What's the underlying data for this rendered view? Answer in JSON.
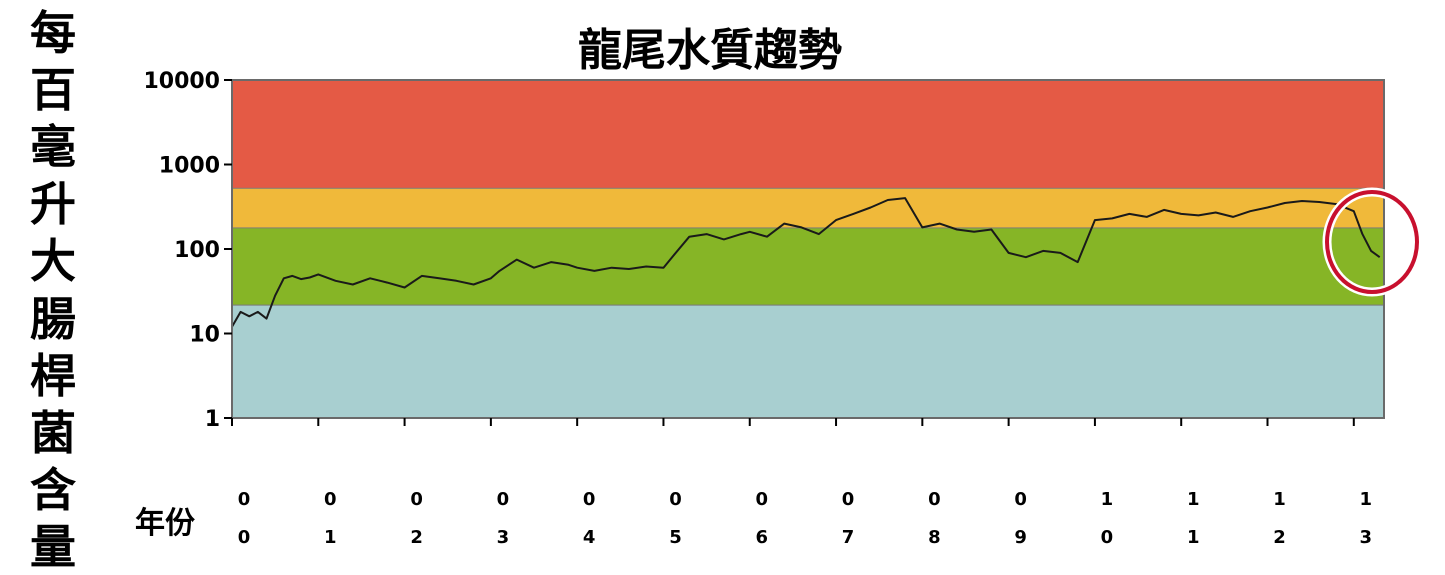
{
  "chart_data": {
    "type": "line",
    "title": "龍尾水質趨勢",
    "ylabel": "每百毫升大腸桿菌含量",
    "xlabel": "年份",
    "yscale": "log",
    "ylim": [
      1,
      10000
    ],
    "yticks": [
      "1",
      "10",
      "100",
      "1000",
      "10000"
    ],
    "xlim": [
      2000.0,
      2013.35
    ],
    "xticks": [
      {
        "value": 2000,
        "top": "0",
        "bottom": "0"
      },
      {
        "value": 2001,
        "top": "0",
        "bottom": "1"
      },
      {
        "value": 2002,
        "top": "0",
        "bottom": "2"
      },
      {
        "value": 2003,
        "top": "0",
        "bottom": "3"
      },
      {
        "value": 2004,
        "top": "0",
        "bottom": "4"
      },
      {
        "value": 2005,
        "top": "0",
        "bottom": "5"
      },
      {
        "value": 2006,
        "top": "0",
        "bottom": "6"
      },
      {
        "value": 2007,
        "top": "0",
        "bottom": "7"
      },
      {
        "value": 2008,
        "top": "0",
        "bottom": "8"
      },
      {
        "value": 2009,
        "top": "0",
        "bottom": "9"
      },
      {
        "value": 2010,
        "top": "1",
        "bottom": "0"
      },
      {
        "value": 2011,
        "top": "1",
        "bottom": "1"
      },
      {
        "value": 2012,
        "top": "1",
        "bottom": "2"
      },
      {
        "value": 2013,
        "top": "1",
        "bottom": "3"
      }
    ],
    "bands": [
      {
        "from": 1,
        "to": 22,
        "color": "#a8cfd0"
      },
      {
        "from": 22,
        "to": 180,
        "color": "#86b526"
      },
      {
        "from": 180,
        "to": 530,
        "color": "#f0b93a"
      },
      {
        "from": 530,
        "to": 10000,
        "color": "#e45a45"
      }
    ],
    "series": [
      {
        "color": "#1a1a1a",
        "x": [
          2000.0,
          2000.1,
          2000.2,
          2000.3,
          2000.4,
          2000.5,
          2000.6,
          2000.7,
          2000.8,
          2000.9,
          2001.0,
          2001.2,
          2001.4,
          2001.6,
          2001.8,
          2002.0,
          2002.2,
          2002.4,
          2002.6,
          2002.8,
          2003.0,
          2003.1,
          2003.3,
          2003.5,
          2003.7,
          2003.9,
          2004.0,
          2004.2,
          2004.4,
          2004.6,
          2004.8,
          2005.0,
          2005.1,
          2005.3,
          2005.5,
          2005.7,
          2005.9,
          2006.0,
          2006.2,
          2006.4,
          2006.6,
          2006.8,
          2007.0,
          2007.2,
          2007.4,
          2007.6,
          2007.8,
          2008.0,
          2008.2,
          2008.4,
          2008.6,
          2008.8,
          2009.0,
          2009.2,
          2009.4,
          2009.6,
          2009.8,
          2010.0,
          2010.2,
          2010.4,
          2010.6,
          2010.8,
          2011.0,
          2011.2,
          2011.4,
          2011.6,
          2011.8,
          2012.0,
          2012.2,
          2012.4,
          2012.6,
          2012.8,
          2013.0,
          2013.1,
          2013.2,
          2013.3
        ],
        "y": [
          12,
          18,
          16,
          18,
          15,
          28,
          45,
          48,
          44,
          46,
          50,
          42,
          38,
          45,
          40,
          35,
          48,
          45,
          42,
          38,
          45,
          55,
          75,
          60,
          70,
          65,
          60,
          55,
          60,
          58,
          62,
          60,
          80,
          140,
          150,
          130,
          150,
          160,
          140,
          200,
          180,
          150,
          220,
          260,
          310,
          380,
          400,
          180,
          200,
          170,
          160,
          170,
          90,
          80,
          95,
          90,
          70,
          220,
          230,
          260,
          240,
          290,
          260,
          250,
          270,
          240,
          280,
          310,
          350,
          370,
          360,
          340,
          280,
          150,
          95,
          80
        ]
      }
    ]
  }
}
